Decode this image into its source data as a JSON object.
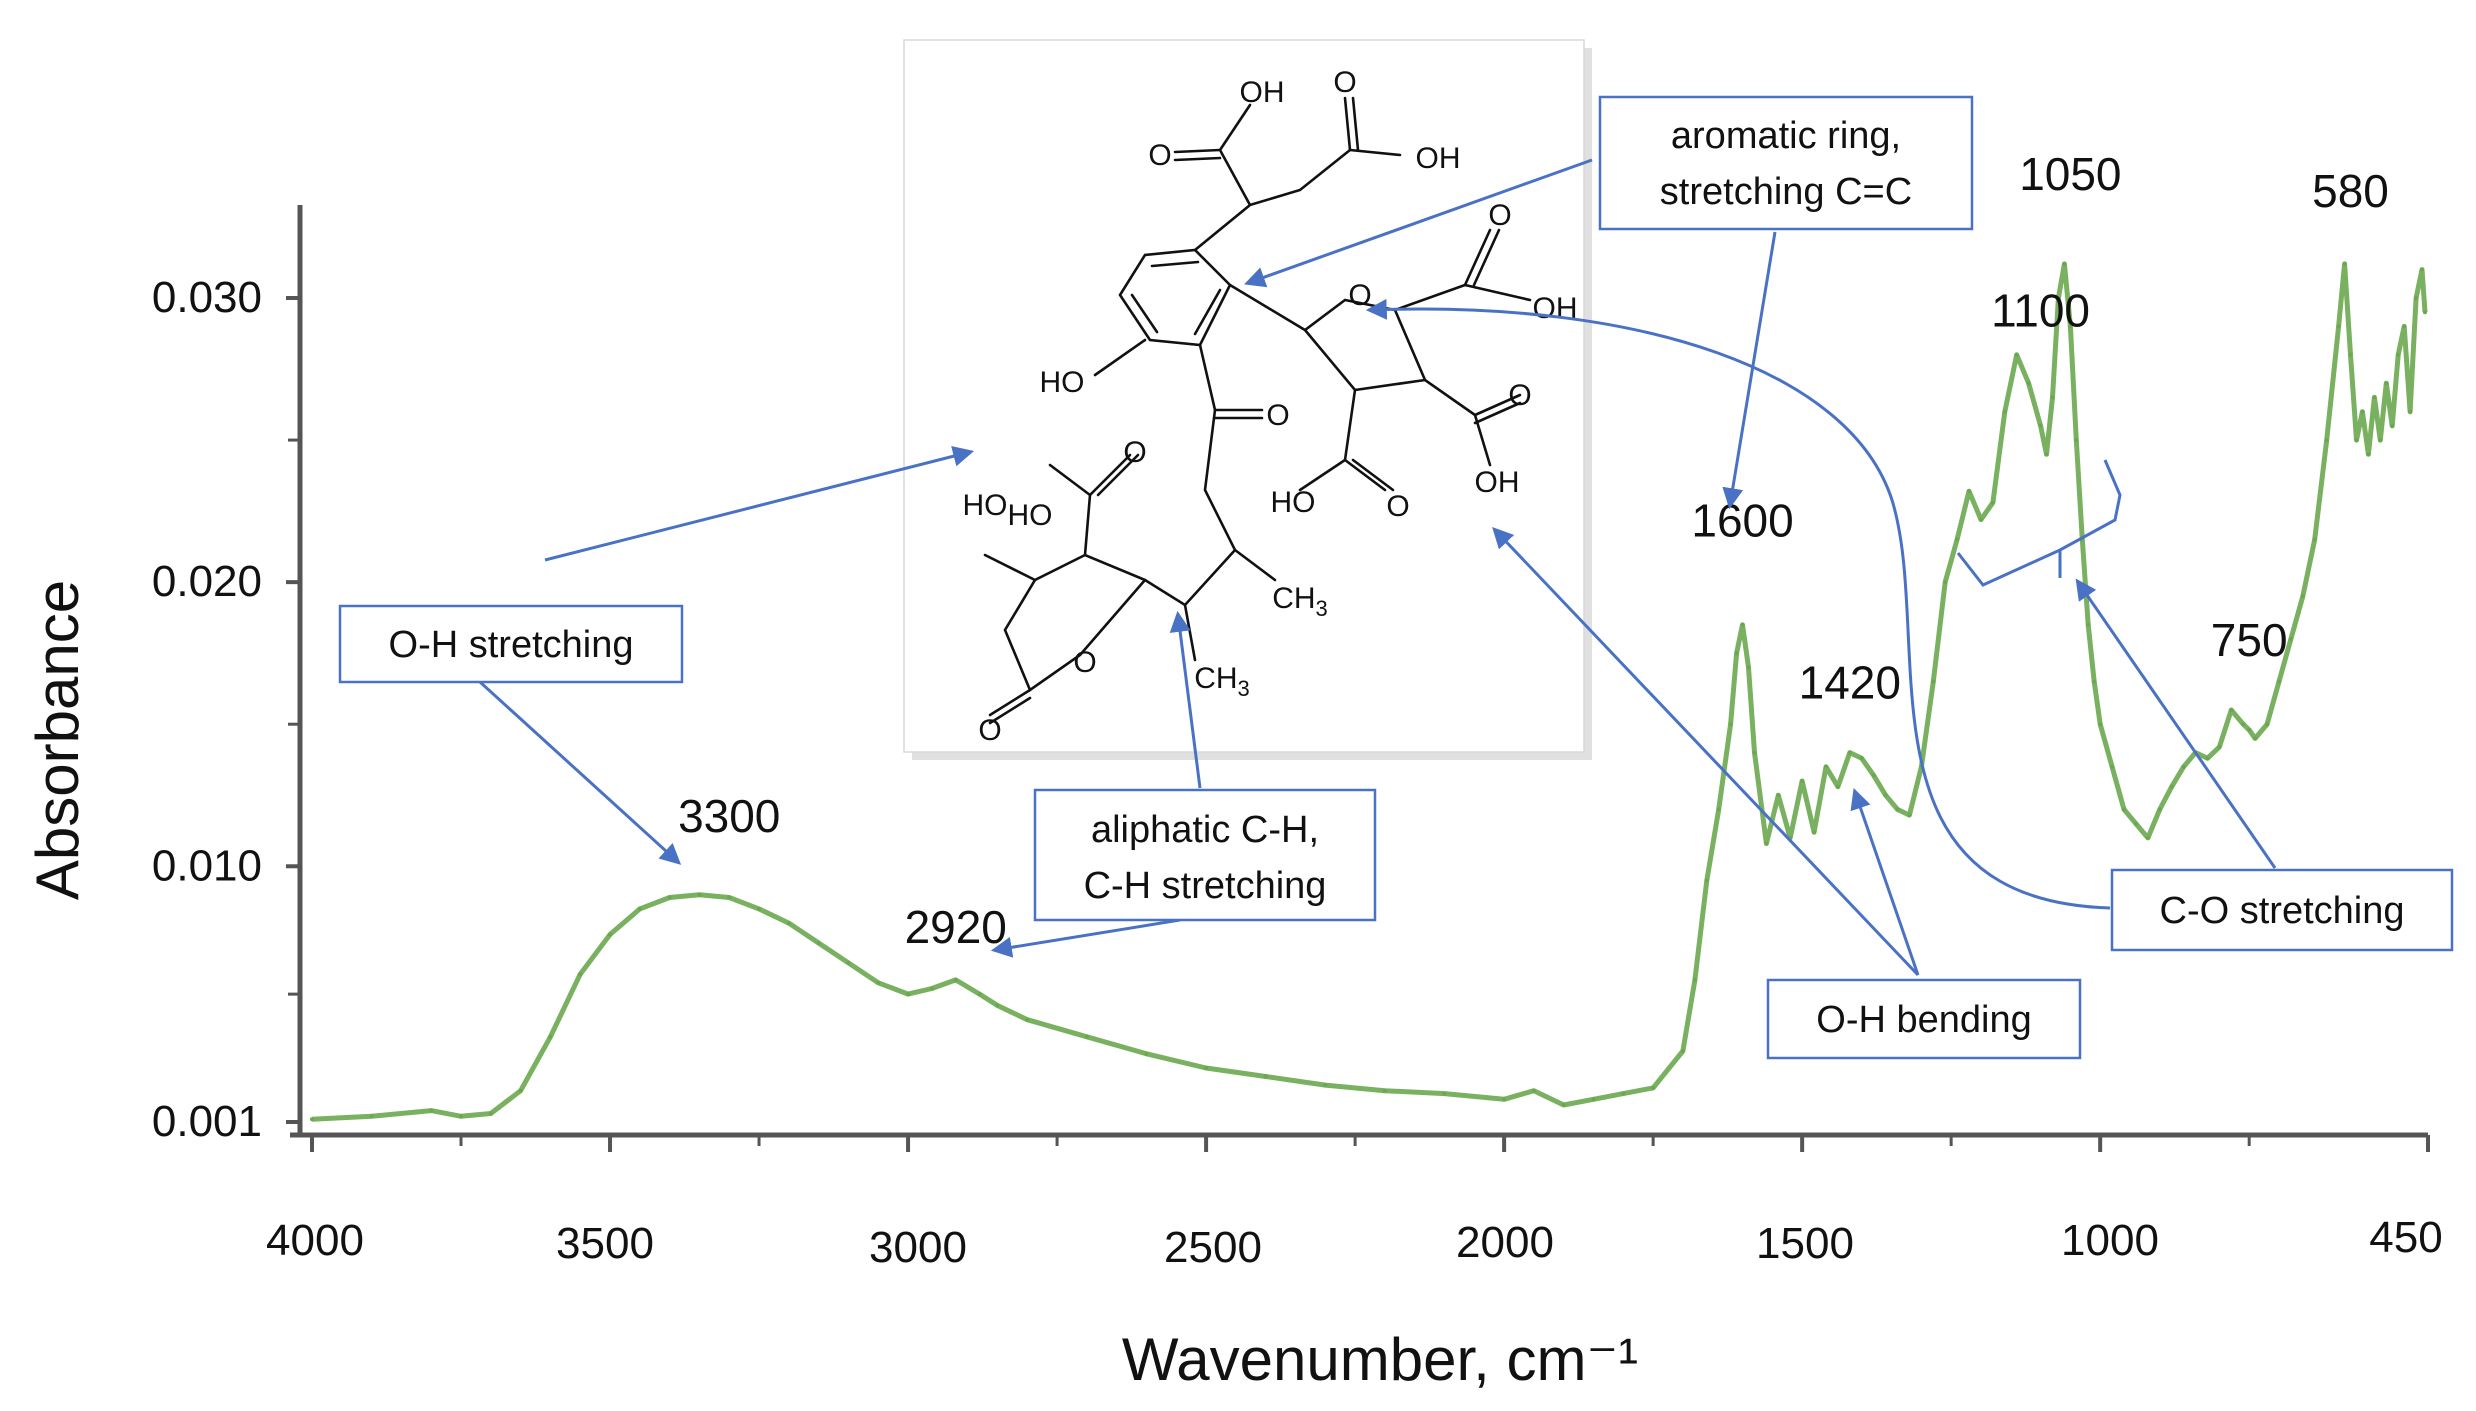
{
  "chart_data": {
    "type": "line",
    "xlabel": "Wavenumber, cm⁻¹",
    "ylabel": "Absorbance",
    "xlim": [
      4000,
      450
    ],
    "ylim": [
      0.001,
      0.032
    ],
    "x_reversed": true,
    "x_ticks": [
      4000,
      3500,
      3000,
      2500,
      2000,
      1500,
      1000,
      450
    ],
    "y_ticks": [
      0.001,
      0.01,
      0.02,
      0.03
    ],
    "y_tick_labels": [
      "0.001",
      "0.010",
      "0.020",
      "0.030"
    ],
    "grid": false,
    "series": [
      {
        "color": "#6aa84f",
        "x": [
          4000,
          3900,
          3800,
          3750,
          3700,
          3650,
          3600,
          3550,
          3500,
          3450,
          3400,
          3350,
          3300,
          3250,
          3200,
          3150,
          3100,
          3050,
          3000,
          2960,
          2920,
          2880,
          2850,
          2800,
          2700,
          2600,
          2500,
          2400,
          2300,
          2200,
          2100,
          2000,
          1950,
          1900,
          1850,
          1800,
          1750,
          1700,
          1680,
          1660,
          1640,
          1620,
          1610,
          1600,
          1590,
          1580,
          1560,
          1540,
          1520,
          1500,
          1480,
          1460,
          1440,
          1420,
          1400,
          1380,
          1360,
          1340,
          1320,
          1300,
          1280,
          1260,
          1240,
          1220,
          1200,
          1180,
          1160,
          1140,
          1120,
          1100,
          1090,
          1080,
          1070,
          1060,
          1050,
          1040,
          1030,
          1020,
          1010,
          1000,
          980,
          960,
          940,
          920,
          900,
          880,
          860,
          840,
          820,
          800,
          780,
          760,
          750,
          740,
          720,
          700,
          680,
          660,
          640,
          620,
          600,
          590,
          580,
          570,
          560,
          550,
          540,
          530,
          520,
          510,
          500,
          490,
          480,
          470,
          460,
          455
        ],
        "y": [
          0.0011,
          0.0012,
          0.0014,
          0.0012,
          0.0013,
          0.0021,
          0.004,
          0.0062,
          0.0076,
          0.0085,
          0.0089,
          0.009,
          0.0089,
          0.0085,
          0.008,
          0.0073,
          0.0066,
          0.0059,
          0.0055,
          0.0057,
          0.006,
          0.0055,
          0.0051,
          0.0046,
          0.004,
          0.0034,
          0.0029,
          0.0026,
          0.0023,
          0.0021,
          0.002,
          0.0018,
          0.0021,
          0.0016,
          0.0018,
          0.002,
          0.0022,
          0.0035,
          0.006,
          0.0095,
          0.012,
          0.015,
          0.0175,
          0.0185,
          0.017,
          0.014,
          0.0108,
          0.0125,
          0.011,
          0.013,
          0.0112,
          0.0135,
          0.0128,
          0.014,
          0.0138,
          0.0132,
          0.0125,
          0.012,
          0.0118,
          0.0135,
          0.0165,
          0.02,
          0.0215,
          0.0232,
          0.0222,
          0.0228,
          0.026,
          0.028,
          0.027,
          0.0255,
          0.0245,
          0.0265,
          0.03,
          0.0312,
          0.029,
          0.025,
          0.0215,
          0.0185,
          0.0165,
          0.015,
          0.0135,
          0.012,
          0.0115,
          0.011,
          0.012,
          0.0128,
          0.0135,
          0.014,
          0.0138,
          0.0142,
          0.0155,
          0.015,
          0.0148,
          0.0145,
          0.015,
          0.0165,
          0.018,
          0.0195,
          0.0215,
          0.025,
          0.029,
          0.0312,
          0.028,
          0.025,
          0.026,
          0.0245,
          0.0265,
          0.025,
          0.027,
          0.0255,
          0.028,
          0.029,
          0.026,
          0.03,
          0.031,
          0.0295
        ]
      }
    ],
    "peak_labels": [
      {
        "text": "3300",
        "x": 3300,
        "y": 0.0112
      },
      {
        "text": "2920",
        "x": 2920,
        "y": 0.0073
      },
      {
        "text": "1600",
        "x": 1600,
        "y": 0.0216
      },
      {
        "text": "1420",
        "x": 1420,
        "y": 0.0159
      },
      {
        "text": "1100",
        "x": 1100,
        "y": 0.029
      },
      {
        "text": "1050",
        "x": 1050,
        "y": 0.0338
      },
      {
        "text": "750",
        "x": 750,
        "y": 0.0174
      },
      {
        "text": "580",
        "x": 580,
        "y": 0.0332
      }
    ],
    "annotations": [
      {
        "lines": [
          "O-H stretching"
        ]
      },
      {
        "lines": [
          "aliphatic C-H,",
          "C-H stretching"
        ]
      },
      {
        "lines": [
          "aromatic ring,",
          "stretching C=C"
        ]
      },
      {
        "lines": [
          "O-H bending"
        ]
      },
      {
        "lines": [
          "C-O stretching"
        ]
      }
    ]
  },
  "molecule": {
    "labels": [
      "OH",
      "O",
      "OH",
      "O",
      "O",
      "OH",
      "HO",
      "O",
      "HO",
      "O",
      "HO",
      "O",
      "OH",
      "O",
      "HO",
      "O",
      "HO",
      "O",
      "O",
      "CH3",
      "CH3"
    ]
  }
}
